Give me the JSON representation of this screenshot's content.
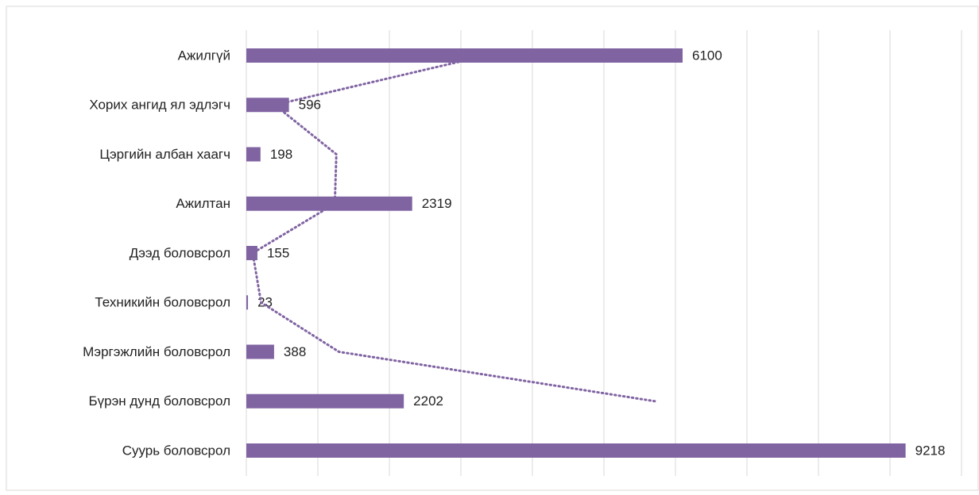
{
  "chart_data": {
    "type": "bar",
    "orientation": "horizontal",
    "categories": [
      "Ажилгүй",
      "Хорих ангид ял эдлэгч",
      "Цэргийн албан хаагч",
      "Ажилтан",
      "Дээд боловсрол",
      "Техникийн боловсрол",
      "Мэргэжлийн боловсрол",
      "Бүрэн дунд боловсрол",
      "Суурь боловсрол"
    ],
    "values": [
      6100,
      596,
      198,
      2319,
      155,
      23,
      388,
      2202,
      9218
    ],
    "color": "#8064a2",
    "xlim": [
      0,
      10000
    ],
    "xticks": [
      0,
      1000,
      2000,
      3000,
      4000,
      5000,
      6000,
      7000,
      8000,
      9000,
      10000
    ],
    "grid": true,
    "trendline": "moving_average_2"
  }
}
